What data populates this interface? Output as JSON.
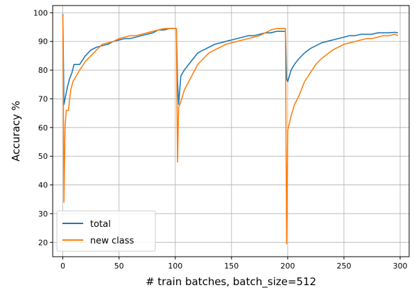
{
  "chart_data": {
    "type": "line",
    "title": "",
    "xlabel": "# train batches, batch_size=512",
    "ylabel": "Accuracy %",
    "xlim": [
      -9,
      308
    ],
    "ylim": [
      15,
      102.5
    ],
    "xticks": [
      0,
      50,
      100,
      150,
      200,
      250,
      300
    ],
    "yticks": [
      20,
      30,
      40,
      50,
      60,
      70,
      80,
      90,
      100
    ],
    "grid": true,
    "legend_position": "bottom-left",
    "series": [
      {
        "name": "total",
        "color": "#1f77b4",
        "points": [
          [
            0,
            99.5
          ],
          [
            1,
            68
          ],
          [
            2,
            70
          ],
          [
            4,
            74
          ],
          [
            6,
            77
          ],
          [
            8,
            79
          ],
          [
            10,
            82
          ],
          [
            15,
            82
          ],
          [
            20,
            85
          ],
          [
            25,
            87
          ],
          [
            30,
            88
          ],
          [
            35,
            88.5
          ],
          [
            40,
            89
          ],
          [
            45,
            90
          ],
          [
            50,
            90.5
          ],
          [
            55,
            91
          ],
          [
            60,
            91
          ],
          [
            65,
            91.5
          ],
          [
            70,
            92
          ],
          [
            75,
            92.5
          ],
          [
            80,
            93
          ],
          [
            85,
            94
          ],
          [
            90,
            94
          ],
          [
            95,
            94.5
          ],
          [
            100,
            94.5
          ],
          [
            101,
            94.5
          ],
          [
            102,
            76
          ],
          [
            103,
            68
          ],
          [
            105,
            78
          ],
          [
            108,
            80
          ],
          [
            112,
            82
          ],
          [
            116,
            84
          ],
          [
            120,
            86
          ],
          [
            125,
            87
          ],
          [
            130,
            88
          ],
          [
            135,
            89
          ],
          [
            140,
            89.5
          ],
          [
            145,
            90
          ],
          [
            150,
            90.5
          ],
          [
            155,
            91
          ],
          [
            160,
            91.5
          ],
          [
            165,
            92
          ],
          [
            170,
            92
          ],
          [
            175,
            92.5
          ],
          [
            180,
            93
          ],
          [
            185,
            93
          ],
          [
            190,
            93.5
          ],
          [
            195,
            93.5
          ],
          [
            198,
            93.5
          ],
          [
            199,
            77
          ],
          [
            200,
            76
          ],
          [
            203,
            80
          ],
          [
            206,
            82
          ],
          [
            210,
            84
          ],
          [
            215,
            86
          ],
          [
            220,
            87.5
          ],
          [
            225,
            88.5
          ],
          [
            230,
            89.5
          ],
          [
            235,
            90
          ],
          [
            240,
            90.5
          ],
          [
            245,
            91
          ],
          [
            250,
            91.5
          ],
          [
            255,
            92
          ],
          [
            260,
            92
          ],
          [
            265,
            92.5
          ],
          [
            270,
            92.5
          ],
          [
            275,
            92.5
          ],
          [
            280,
            93
          ],
          [
            285,
            93
          ],
          [
            290,
            93
          ],
          [
            295,
            93.2
          ],
          [
            298,
            93
          ]
        ]
      },
      {
        "name": "new class",
        "color": "#ff7f0e",
        "points": [
          [
            0,
            99.2
          ],
          [
            1,
            34
          ],
          [
            2,
            60
          ],
          [
            3,
            66
          ],
          [
            5,
            66
          ],
          [
            7,
            73
          ],
          [
            9,
            76
          ],
          [
            12,
            78
          ],
          [
            15,
            80
          ],
          [
            20,
            83
          ],
          [
            25,
            85
          ],
          [
            30,
            87
          ],
          [
            35,
            89
          ],
          [
            40,
            89.5
          ],
          [
            45,
            90
          ],
          [
            50,
            91
          ],
          [
            55,
            91.5
          ],
          [
            60,
            92
          ],
          [
            65,
            92
          ],
          [
            70,
            92.5
          ],
          [
            75,
            93
          ],
          [
            80,
            93.5
          ],
          [
            85,
            94
          ],
          [
            90,
            94.5
          ],
          [
            95,
            94.5
          ],
          [
            100,
            94.5
          ],
          [
            101,
            94.5
          ],
          [
            102,
            48
          ],
          [
            103,
            67
          ],
          [
            105,
            69
          ],
          [
            108,
            73
          ],
          [
            112,
            76
          ],
          [
            116,
            79
          ],
          [
            120,
            82
          ],
          [
            125,
            84
          ],
          [
            130,
            86
          ],
          [
            135,
            87
          ],
          [
            140,
            88
          ],
          [
            145,
            89
          ],
          [
            150,
            89.5
          ],
          [
            155,
            90
          ],
          [
            160,
            90.5
          ],
          [
            165,
            91
          ],
          [
            170,
            91.5
          ],
          [
            175,
            92
          ],
          [
            180,
            93
          ],
          [
            185,
            94
          ],
          [
            190,
            94.5
          ],
          [
            195,
            94.5
          ],
          [
            198,
            94.5
          ],
          [
            199,
            19.5
          ],
          [
            200,
            59
          ],
          [
            203,
            64
          ],
          [
            206,
            68
          ],
          [
            210,
            71
          ],
          [
            215,
            76
          ],
          [
            220,
            79
          ],
          [
            225,
            82
          ],
          [
            230,
            84
          ],
          [
            235,
            85.5
          ],
          [
            240,
            87
          ],
          [
            245,
            88
          ],
          [
            250,
            89
          ],
          [
            255,
            89.5
          ],
          [
            260,
            90
          ],
          [
            265,
            90.5
          ],
          [
            270,
            91
          ],
          [
            275,
            91
          ],
          [
            280,
            91.5
          ],
          [
            285,
            92
          ],
          [
            290,
            92
          ],
          [
            295,
            92.5
          ],
          [
            298,
            92
          ]
        ]
      }
    ]
  }
}
